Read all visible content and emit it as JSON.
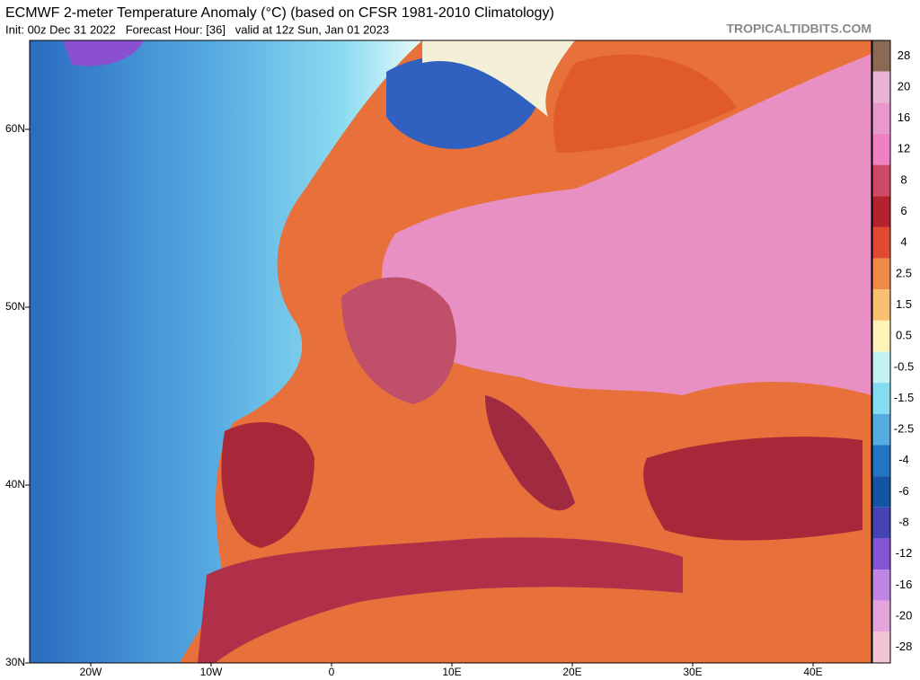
{
  "header": {
    "title": "ECMWF 2-meter Temperature Anomaly (°C) (based on CFSR 1981-2010 Climatology)",
    "subtitle": "Init: 00z Dec 31 2022   Forecast Hour: [36]   valid at 12z Sun, Jan 01 2023",
    "source": "TROPICALTIDBITS.COM"
  },
  "map": {
    "lat_labels": [
      "60N",
      "50N",
      "40N",
      "30N"
    ],
    "lon_labels": [
      "20W",
      "10W",
      "0",
      "10E",
      "20E",
      "30E",
      "40E"
    ]
  },
  "colorbar": {
    "levels": [
      28,
      20,
      16,
      12,
      8,
      6,
      4,
      2.5,
      1.5,
      0.5,
      -0.5,
      -1.5,
      -2.5,
      -4,
      -6,
      -8,
      -12,
      -16,
      -20,
      -28
    ],
    "colors": [
      "#8a6a55",
      "#eab4d6",
      "#e898cc",
      "#f080c4",
      "#d04868",
      "#b42230",
      "#e04a30",
      "#f08848",
      "#f8c070",
      "#fff2b8",
      "#c4f2f2",
      "#84dcf0",
      "#54acE0",
      "#2474c4",
      "#1454a4",
      "#4444b4",
      "#8454d4",
      "#c084e4",
      "#e4a4dc",
      "#f2c4d4"
    ]
  }
}
